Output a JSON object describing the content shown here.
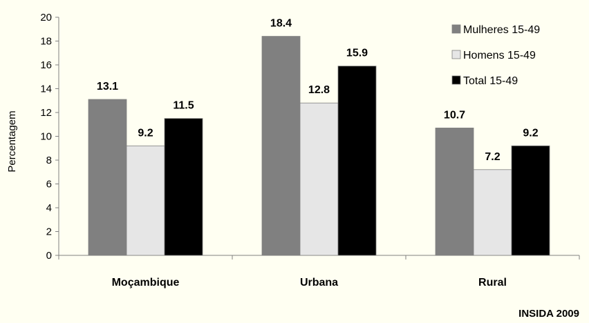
{
  "chart_data": {
    "type": "bar",
    "ylabel": "Percentagem",
    "ylim": [
      0,
      20
    ],
    "yticks": [
      0,
      2,
      4,
      6,
      8,
      10,
      12,
      14,
      16,
      18,
      20
    ],
    "categories": [
      "Moçambique",
      "Urbana",
      "Rural"
    ],
    "series": [
      {
        "name": "Mulheres 15-49",
        "color": "#808080",
        "values": [
          13.1,
          18.4,
          10.7
        ]
      },
      {
        "name": "Homens 15-49",
        "color": "#e6e6e6",
        "values": [
          9.2,
          12.8,
          7.2
        ]
      },
      {
        "name": "Total 15-49",
        "color": "#000000",
        "values": [
          11.5,
          15.9,
          9.2
        ]
      }
    ],
    "legend": "top-right",
    "grid": false,
    "source": "INSIDA 2009"
  }
}
